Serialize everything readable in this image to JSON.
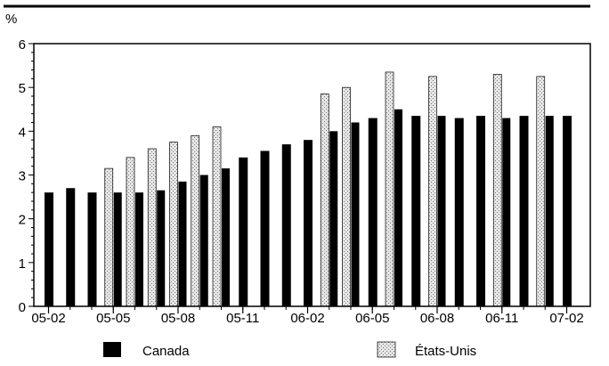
{
  "chart_data": {
    "type": "bar",
    "unit_label": "%",
    "ylim": [
      0,
      6
    ],
    "y_ticks": [
      0,
      1,
      2,
      3,
      4,
      5,
      6
    ],
    "grid": false,
    "legend_position": "bottom",
    "categories": [
      "05-02",
      "05-03",
      "05-04",
      "05-05",
      "05-06",
      "05-07",
      "05-08",
      "05-09",
      "05-10",
      "05-11",
      "05-12",
      "06-01",
      "06-02",
      "06-03",
      "06-04",
      "06-05",
      "06-06",
      "06-07",
      "06-08",
      "06-09",
      "06-10",
      "06-11",
      "06-12",
      "07-01",
      "07-02"
    ],
    "tick_labels": [
      "05-02",
      "05-05",
      "05-08",
      "05-11",
      "06-02",
      "06-05",
      "06-08",
      "06-11",
      "07-02"
    ],
    "series": [
      {
        "name": "Canada",
        "color": "#000000",
        "values": [
          2.6,
          2.7,
          2.6,
          2.6,
          2.6,
          2.65,
          2.85,
          3.0,
          3.15,
          3.4,
          3.55,
          3.7,
          3.8,
          4.0,
          4.2,
          4.3,
          4.5,
          4.35,
          4.35,
          4.3,
          4.35,
          4.3,
          4.35,
          4.35,
          4.35
        ]
      },
      {
        "name": "États-Unis",
        "color": "#c8c8c8",
        "values": [
          null,
          null,
          null,
          3.15,
          3.4,
          3.6,
          3.75,
          3.9,
          4.1,
          null,
          null,
          null,
          null,
          4.85,
          5.0,
          null,
          5.35,
          null,
          5.25,
          null,
          null,
          5.3,
          null,
          5.25,
          null
        ]
      }
    ]
  }
}
